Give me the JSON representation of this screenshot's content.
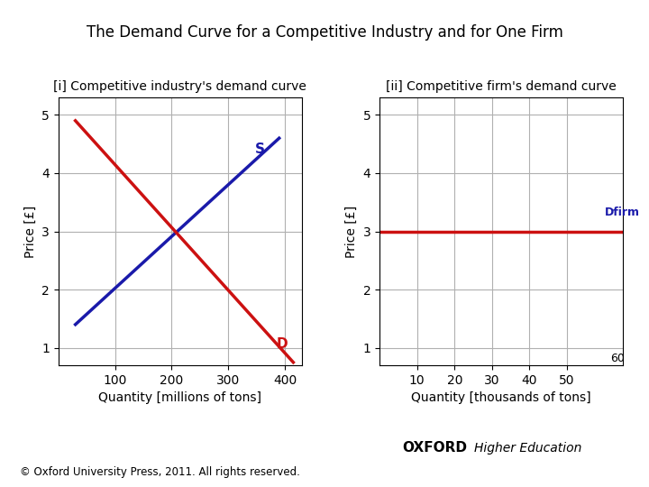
{
  "title": "The Demand Curve for a Competitive Industry and for One Firm",
  "footer": [
    "OXFORD",
    "Higher Education",
    "© Oxford University Press, 2011. All rights reserved."
  ],
  "chart_data": [
    {
      "type": "line",
      "title": "[i] Competitive industry's demand curve",
      "x_label": "Quantity [millions of tons]",
      "y_label": "Price [£]",
      "xlim": [
        0,
        430
      ],
      "ylim": [
        0.7,
        5.3
      ],
      "xticks": [
        100,
        200,
        300,
        400
      ],
      "yticks": [
        1,
        2,
        3,
        4,
        5
      ],
      "grid": true,
      "series": [
        {
          "color": "#1a1aaa",
          "x": [
            30,
            390
          ],
          "values": [
            1.4,
            4.6
          ]
        },
        {
          "color": "#cc1111",
          "x": [
            30,
            415
          ],
          "values": [
            4.9,
            0.75
          ]
        }
      ],
      "annotations": [
        {
          "text": "S",
          "x": 348,
          "y": 4.3,
          "color": "#1a1aaa"
        },
        {
          "text": "D",
          "x": 385,
          "y": 0.95,
          "color": "#cc1111"
        }
      ]
    },
    {
      "type": "line",
      "title": "[ii] Competitive firm's demand curve",
      "x_label": "Quantity [thousands of tons]",
      "y_label": "Price [£]",
      "xlim": [
        0,
        65
      ],
      "ylim": [
        0.7,
        5.3
      ],
      "xticks": [
        10,
        20,
        30,
        40,
        50
      ],
      "yticks": [
        1,
        2,
        3,
        4,
        5
      ],
      "grid": true,
      "series": [
        {
          "color": "#cc1111",
          "x": [
            0,
            65
          ],
          "values": [
            3.0,
            3.0
          ]
        }
      ],
      "annotations": [
        {
          "text": "Dfirm",
          "x": 60,
          "y": 3.22,
          "color": "#1a1aaa"
        },
        {
          "text": "60",
          "x": 61.5,
          "y": 0.72
        }
      ]
    }
  ]
}
